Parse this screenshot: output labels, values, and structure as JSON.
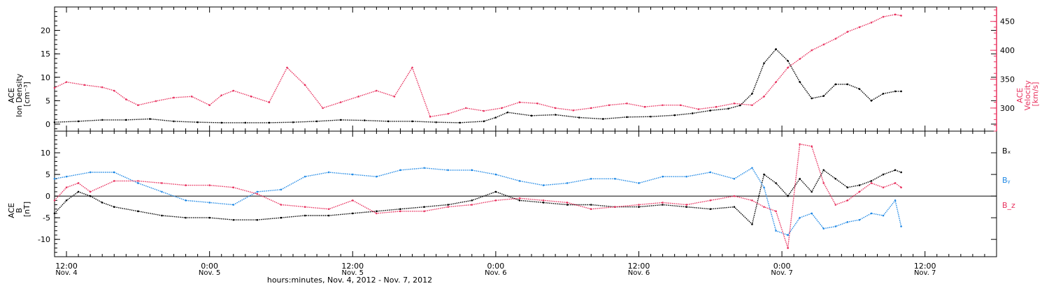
{
  "colors": {
    "black": "#000000",
    "pink": "#e8325f",
    "blue": "#1e88e5"
  },
  "xaxis": {
    "label": "hours:minutes, Nov. 4, 2012 - Nov. 7, 2012",
    "ticks": [
      {
        "h": 12,
        "time": "12:00",
        "date": "Nov. 4"
      },
      {
        "h": 24,
        "time": "0:00",
        "date": "Nov. 5"
      },
      {
        "h": 36,
        "time": "12:00",
        "date": "Nov. 5"
      },
      {
        "h": 48,
        "time": "0:00",
        "date": "Nov. 6"
      },
      {
        "h": 60,
        "time": "12:00",
        "date": "Nov. 6"
      },
      {
        "h": 72,
        "time": "0:00",
        "date": "Nov. 7"
      },
      {
        "h": 84,
        "time": "12:00",
        "date": "Nov. 7"
      }
    ]
  },
  "chart_data": [
    {
      "type": "scatter",
      "panel": "top",
      "x_unit": "hours since Nov. 4, 2012 0:00",
      "xlim": [
        11.0,
        90.0
      ],
      "left_axis": {
        "lines": [
          "ACE",
          "Ion Density",
          "[cm⁻³]"
        ],
        "ylim": [
          -1.5,
          25
        ],
        "ticks": [
          0,
          5,
          10,
          15,
          20
        ],
        "tick_labels": [
          "0",
          "5",
          "10",
          "15",
          "20"
        ]
      },
      "right_axis": {
        "lines": [
          "ACE",
          "Velocity",
          "[km/s]"
        ],
        "ylim": [
          260,
          475
        ],
        "ticks": [
          300,
          350,
          400,
          450
        ],
        "tick_labels": [
          "300",
          "350",
          "400",
          "450"
        ]
      },
      "series": [
        {
          "color": "#000000",
          "axis": "left",
          "x": [
            11.0,
            13.0,
            15.0,
            17.0,
            19.0,
            21.0,
            23.0,
            25.0,
            27.0,
            29.0,
            31.0,
            33.0,
            35.0,
            37.0,
            39.0,
            41.0,
            43.0,
            45.0,
            47.0,
            48.0,
            49.0,
            51.0,
            53.0,
            55.0,
            57.0,
            59.0,
            61.0,
            63.0,
            64.5,
            66.0,
            67.5,
            68.5,
            69.5,
            70.5,
            71.5,
            72.5,
            73.5,
            74.5,
            75.5,
            76.5,
            77.5,
            78.5,
            79.5,
            80.5,
            81.5,
            82.0
          ],
          "y": [
            0.4,
            0.6,
            0.9,
            0.9,
            1.1,
            0.6,
            0.4,
            0.3,
            0.3,
            0.3,
            0.4,
            0.6,
            0.9,
            0.8,
            0.6,
            0.6,
            0.4,
            0.3,
            0.6,
            1.4,
            2.5,
            1.8,
            2.0,
            1.4,
            1.1,
            1.5,
            1.6,
            1.9,
            2.3,
            2.9,
            3.3,
            4.0,
            6.5,
            13.0,
            16.0,
            13.5,
            9.0,
            5.5,
            6.0,
            8.5,
            8.5,
            7.5,
            5.0,
            6.5,
            7.0,
            7.0
          ]
        },
        {
          "color": "#e8325f",
          "axis": "right",
          "x": [
            11.0,
            12.0,
            13.5,
            15.0,
            16.0,
            17.0,
            18.0,
            19.5,
            21.0,
            22.5,
            24.0,
            25.0,
            26.0,
            27.5,
            29.0,
            30.5,
            32.0,
            33.5,
            35.0,
            36.5,
            38.0,
            39.5,
            41.0,
            42.5,
            44.0,
            45.5,
            47.0,
            48.5,
            50.0,
            51.5,
            53.0,
            54.5,
            56.0,
            57.5,
            59.0,
            60.5,
            62.0,
            63.5,
            65.0,
            66.5,
            68.0,
            69.5,
            70.5,
            71.5,
            72.5,
            73.5,
            74.5,
            75.5,
            76.5,
            77.5,
            78.5,
            79.5,
            80.5,
            81.5,
            82.0
          ],
          "y": [
            335,
            345,
            340,
            336,
            330,
            315,
            305,
            312,
            318,
            320,
            305,
            322,
            330,
            320,
            310,
            370,
            340,
            300,
            310,
            320,
            330,
            320,
            370,
            285,
            290,
            300,
            295,
            300,
            310,
            308,
            300,
            296,
            300,
            305,
            308,
            302,
            305,
            305,
            298,
            302,
            308,
            305,
            320,
            345,
            370,
            385,
            400,
            410,
            420,
            432,
            440,
            448,
            458,
            462,
            460
          ]
        }
      ]
    },
    {
      "type": "scatter",
      "panel": "bottom",
      "x_unit": "hours since Nov. 4, 2012 0:00",
      "xlim": [
        11.0,
        90.0
      ],
      "left_axis": {
        "lines": [
          "ACE",
          "B",
          "[nT]"
        ],
        "ylim": [
          -14,
          15
        ],
        "ticks": [
          -10,
          -5,
          0,
          5,
          10
        ],
        "tick_labels": [
          "-10",
          "-5",
          "0",
          "5",
          "10"
        ]
      },
      "zero_line": 0,
      "legend": [
        "Bₓ",
        "Bᵧ",
        "B_z"
      ],
      "series": [
        {
          "name": "Bₓ",
          "color": "#000000",
          "x": [
            11.0,
            12.0,
            13.0,
            14.0,
            15.0,
            16.0,
            18.0,
            20.0,
            22.0,
            24.0,
            26.0,
            28.0,
            30.0,
            32.0,
            34.0,
            36.0,
            38.0,
            40.0,
            42.0,
            44.0,
            46.0,
            48.0,
            50.0,
            52.0,
            54.0,
            56.0,
            58.0,
            60.0,
            62.0,
            64.0,
            66.0,
            68.0,
            69.5,
            70.5,
            71.5,
            72.5,
            73.5,
            74.5,
            75.5,
            76.5,
            77.5,
            78.5,
            79.5,
            80.5,
            81.5,
            82.0
          ],
          "y": [
            -4.0,
            -1.0,
            1.0,
            0.0,
            -1.5,
            -2.5,
            -3.5,
            -4.5,
            -5.0,
            -5.0,
            -5.5,
            -5.5,
            -5.0,
            -4.5,
            -4.5,
            -4.0,
            -3.5,
            -3.0,
            -2.5,
            -2.0,
            -1.0,
            1.0,
            -1.0,
            -1.5,
            -2.0,
            -2.0,
            -2.5,
            -2.5,
            -2.0,
            -2.5,
            -3.0,
            -2.5,
            -6.5,
            5.0,
            3.0,
            0.0,
            4.0,
            1.0,
            6.0,
            4.0,
            2.0,
            2.5,
            3.5,
            5.0,
            6.0,
            5.5
          ]
        },
        {
          "name": "Bᵧ",
          "color": "#1e88e5",
          "x": [
            11.0,
            12.0,
            14.0,
            16.0,
            18.0,
            20.0,
            22.0,
            24.0,
            26.0,
            28.0,
            30.0,
            32.0,
            34.0,
            36.0,
            38.0,
            40.0,
            42.0,
            44.0,
            46.0,
            48.0,
            50.0,
            52.0,
            54.0,
            56.0,
            58.0,
            60.0,
            62.0,
            64.0,
            66.0,
            68.0,
            69.5,
            70.5,
            71.5,
            72.5,
            73.5,
            74.5,
            75.5,
            76.5,
            77.5,
            78.5,
            79.5,
            80.5,
            81.5,
            82.0
          ],
          "y": [
            4.0,
            4.5,
            5.5,
            5.5,
            3.0,
            1.0,
            -1.0,
            -1.5,
            -2.0,
            1.0,
            1.5,
            4.5,
            5.5,
            5.0,
            4.5,
            6.0,
            6.5,
            6.0,
            6.0,
            5.0,
            3.5,
            2.5,
            3.0,
            4.0,
            4.0,
            3.0,
            4.5,
            4.5,
            5.5,
            4.0,
            6.5,
            2.0,
            -8.0,
            -9.0,
            -5.0,
            -4.0,
            -7.5,
            -7.0,
            -6.0,
            -5.5,
            -4.0,
            -4.5,
            -1.0,
            -7.0
          ]
        },
        {
          "name": "B_z",
          "color": "#e8325f",
          "x": [
            11.0,
            12.0,
            13.0,
            14.0,
            16.0,
            18.0,
            20.0,
            22.0,
            24.0,
            26.0,
            28.0,
            30.0,
            32.0,
            34.0,
            36.0,
            38.0,
            40.0,
            42.0,
            44.0,
            46.0,
            48.0,
            50.0,
            52.0,
            54.0,
            56.0,
            58.0,
            60.0,
            62.0,
            64.0,
            66.0,
            68.0,
            69.5,
            70.5,
            71.5,
            72.5,
            73.5,
            74.5,
            75.5,
            76.5,
            77.5,
            78.5,
            79.5,
            80.5,
            81.5,
            82.0
          ],
          "y": [
            -1.0,
            2.0,
            3.0,
            1.0,
            3.5,
            3.5,
            3.0,
            2.5,
            2.5,
            2.0,
            0.5,
            -2.0,
            -2.5,
            -3.0,
            -1.0,
            -4.0,
            -3.5,
            -3.5,
            -2.5,
            -2.0,
            -1.0,
            -0.5,
            -1.0,
            -1.5,
            -3.0,
            -2.5,
            -2.0,
            -1.5,
            -2.0,
            -1.0,
            0.0,
            -1.0,
            -2.5,
            -3.5,
            -12.0,
            12.0,
            11.5,
            3.0,
            -2.0,
            -1.0,
            1.0,
            3.0,
            2.0,
            3.0,
            2.0
          ]
        }
      ]
    }
  ]
}
